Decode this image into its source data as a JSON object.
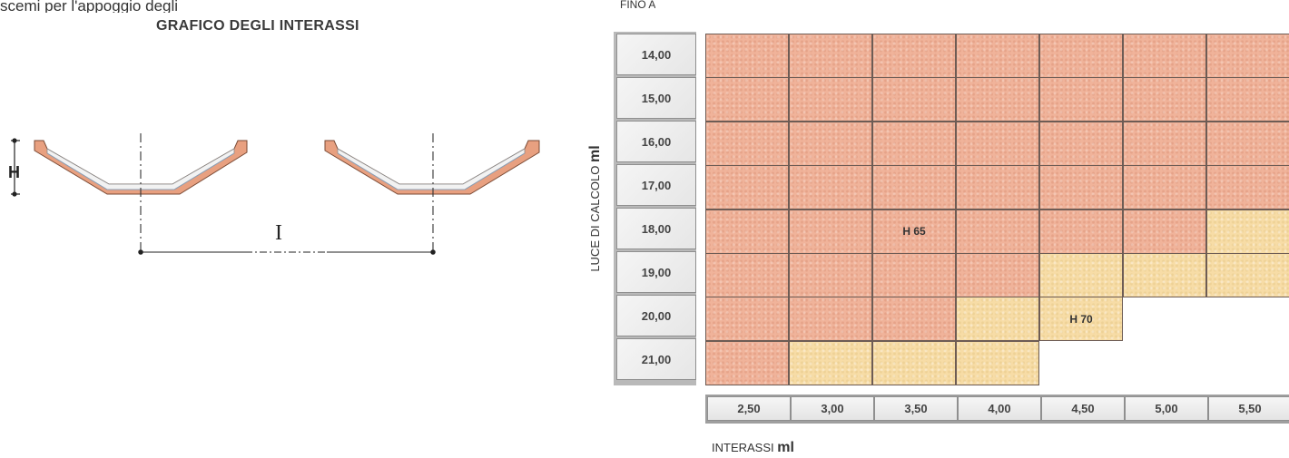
{
  "intro_text": "scemi per l'appoggio degli",
  "diagram": {
    "title": "GRAFICO DEGLI INTERASSI",
    "height_symbol": "H",
    "spacing_symbol": "I"
  },
  "chart_data": {
    "type": "table",
    "title": "",
    "top_label": "FINO A",
    "ylabel": "LUCE DI CALCOLO",
    "ylabel_unit": "ml",
    "xlabel": "INTERASSI",
    "xlabel_unit": "ml",
    "rows": [
      "14,00",
      "15,00",
      "16,00",
      "17,00",
      "18,00",
      "19,00",
      "20,00",
      "21,00"
    ],
    "columns": [
      "2,50",
      "3,00",
      "3,50",
      "4,00",
      "4,50",
      "5,00",
      "5,50"
    ],
    "zones": [
      "H 65",
      "H 70"
    ],
    "cells": [
      [
        "H 65",
        "H 65",
        "H 65",
        "H 65",
        "H 65",
        "H 65",
        "H 65"
      ],
      [
        "H 65",
        "H 65",
        "H 65",
        "H 65",
        "H 65",
        "H 65",
        "H 65"
      ],
      [
        "H 65",
        "H 65",
        "H 65",
        "H 65",
        "H 65",
        "H 65",
        "H 65"
      ],
      [
        "H 65",
        "H 65",
        "H 65",
        "H 65",
        "H 65",
        "H 65",
        "H 65"
      ],
      [
        "H 65",
        "H 65",
        "H 65",
        "H 65",
        "H 65",
        "H 65",
        "H 70"
      ],
      [
        "H 65",
        "H 65",
        "H 65",
        "H 65",
        "H 70",
        "H 70",
        "H 70"
      ],
      [
        "H 65",
        "H 65",
        "H 65",
        "H 70",
        "H 70",
        null,
        null
      ],
      [
        "H 65",
        "H 70",
        "H 70",
        "H 70",
        null,
        null,
        null
      ]
    ],
    "zone_colors": {
      "H 65": "#f0b39a",
      "H 70": "#f7dca6"
    }
  }
}
